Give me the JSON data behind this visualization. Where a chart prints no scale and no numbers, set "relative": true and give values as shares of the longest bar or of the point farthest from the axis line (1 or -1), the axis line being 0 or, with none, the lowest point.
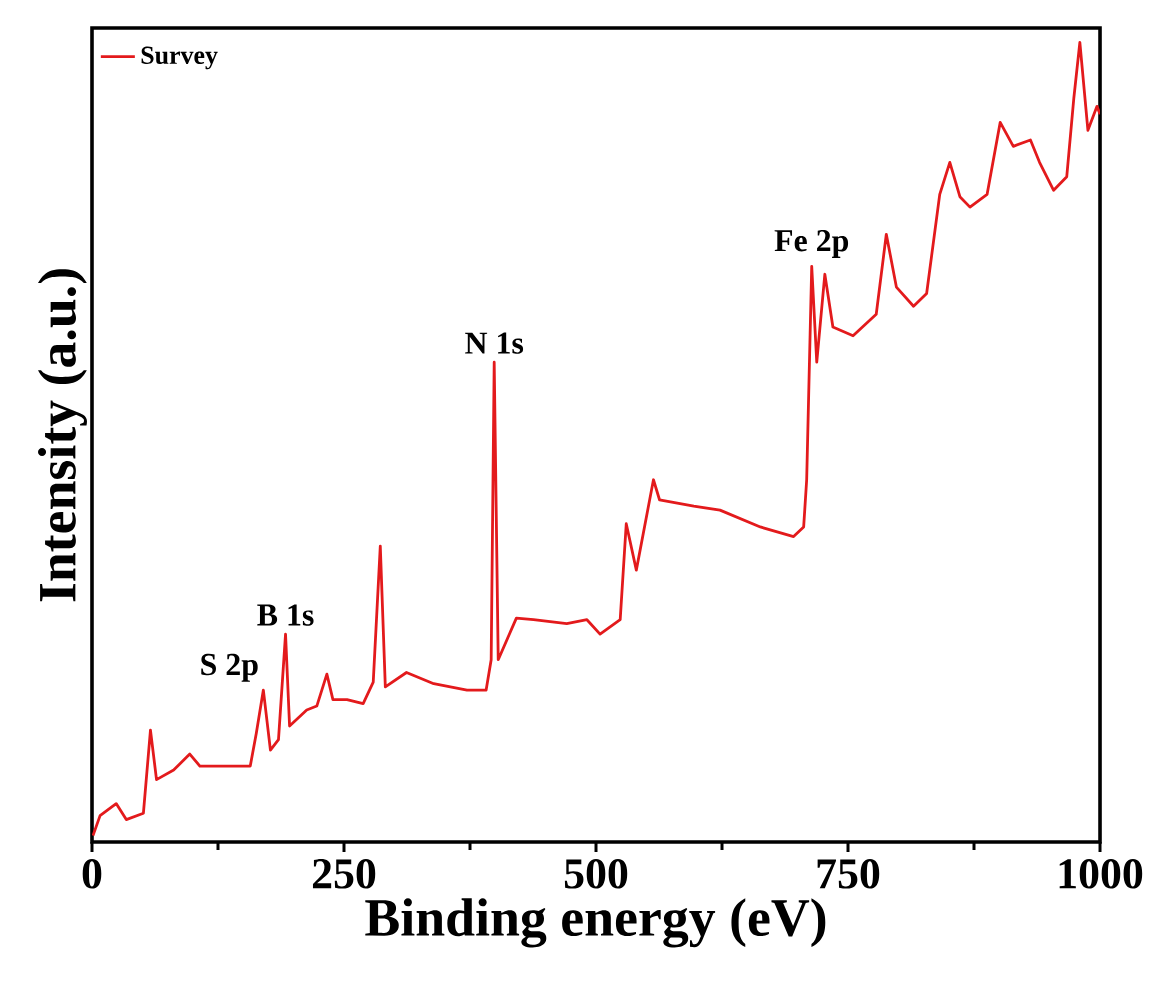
{
  "chart_data": {
    "type": "line",
    "xlabel": "Binding energy (eV)",
    "ylabel": "Intensity (a.u.)",
    "relative": true,
    "xlim": [
      0,
      1000
    ],
    "xticks": [
      0,
      250,
      500,
      750,
      1000
    ],
    "legend": "top left",
    "grid": false,
    "annotations": [
      {
        "text": "S 2p",
        "x": 170,
        "y": 0.19
      },
      {
        "text": "B 1s",
        "x": 192,
        "y": 0.26
      },
      {
        "text": "N 1s",
        "x": 399,
        "y": 0.6
      },
      {
        "text": "Fe 2p",
        "x": 714,
        "y": 0.72
      }
    ],
    "series": [
      {
        "name": "Survey",
        "color": "#e31a1c",
        "x": [
          1,
          8,
          24,
          34,
          51,
          58,
          64,
          81,
          97,
          107,
          133,
          157,
          163,
          170,
          177,
          185,
          192,
          196,
          213,
          223,
          233,
          239,
          253,
          269,
          279,
          286,
          291,
          312,
          339,
          372,
          391,
          396,
          399,
          403,
          421,
          438,
          471,
          491,
          504,
          524,
          530,
          540,
          557,
          563,
          597,
          623,
          663,
          696,
          706,
          709,
          714,
          719,
          727,
          735,
          755,
          778,
          788,
          798,
          815,
          828,
          841,
          851,
          861,
          871,
          888,
          901,
          914,
          931,
          940,
          954,
          967,
          974,
          980,
          988,
          997,
          1000
        ],
        "values": [
          0.008,
          0.033,
          0.048,
          0.028,
          0.036,
          0.14,
          0.078,
          0.09,
          0.11,
          0.095,
          0.095,
          0.095,
          0.136,
          0.19,
          0.115,
          0.128,
          0.26,
          0.145,
          0.165,
          0.17,
          0.21,
          0.178,
          0.178,
          0.173,
          0.2,
          0.37,
          0.194,
          0.212,
          0.198,
          0.19,
          0.19,
          0.228,
          0.6,
          0.228,
          0.28,
          0.278,
          0.273,
          0.278,
          0.26,
          0.278,
          0.398,
          0.34,
          0.453,
          0.428,
          0.42,
          0.415,
          0.394,
          0.382,
          0.394,
          0.453,
          0.72,
          0.6,
          0.71,
          0.644,
          0.633,
          0.66,
          0.76,
          0.694,
          0.67,
          0.686,
          0.81,
          0.85,
          0.807,
          0.794,
          0.81,
          0.9,
          0.87,
          0.878,
          0.85,
          0.815,
          0.832,
          0.93,
          1.0,
          0.89,
          0.92,
          0.91
        ]
      }
    ]
  }
}
